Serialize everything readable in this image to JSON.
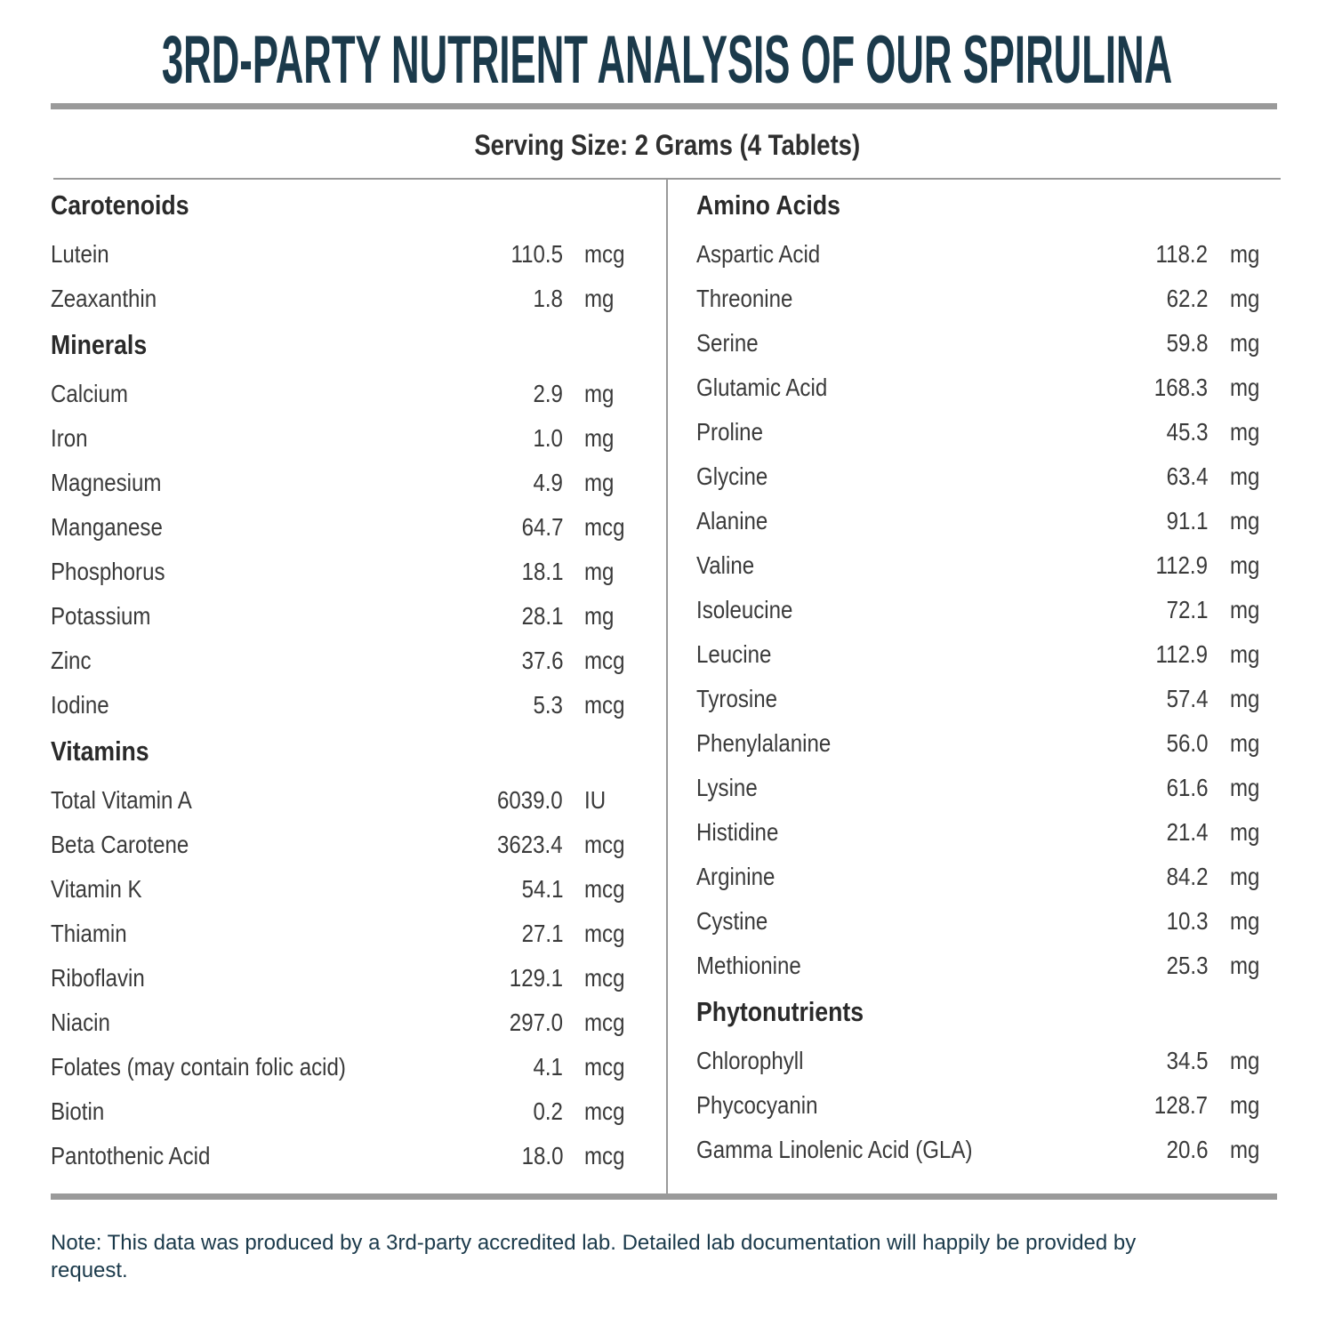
{
  "title": "3RD-PARTY NUTRIENT ANALYSIS OF OUR SPIRULINA",
  "serving_size": "Serving Size: 2 Grams (4 Tablets)",
  "columns": [
    {
      "sections": [
        {
          "heading": "Carotenoids",
          "items": [
            {
              "name": "Lutein",
              "value": "110.5",
              "unit": "mcg"
            },
            {
              "name": "Zeaxanthin",
              "value": "1.8",
              "unit": "mg"
            }
          ]
        },
        {
          "heading": "Minerals",
          "items": [
            {
              "name": "Calcium",
              "value": "2.9",
              "unit": "mg"
            },
            {
              "name": "Iron",
              "value": "1.0",
              "unit": "mg"
            },
            {
              "name": "Magnesium",
              "value": "4.9",
              "unit": "mg"
            },
            {
              "name": "Manganese",
              "value": "64.7",
              "unit": "mcg"
            },
            {
              "name": "Phosphorus",
              "value": "18.1",
              "unit": "mg"
            },
            {
              "name": "Potassium",
              "value": "28.1",
              "unit": "mg"
            },
            {
              "name": "Zinc",
              "value": "37.6",
              "unit": "mcg"
            },
            {
              "name": "Iodine",
              "value": "5.3",
              "unit": "mcg"
            }
          ]
        },
        {
          "heading": "Vitamins",
          "items": [
            {
              "name": "Total Vitamin A",
              "value": "6039.0",
              "unit": "IU"
            },
            {
              "name": "Beta Carotene",
              "value": "3623.4",
              "unit": "mcg"
            },
            {
              "name": "Vitamin K",
              "value": "54.1",
              "unit": "mcg"
            },
            {
              "name": "Thiamin",
              "value": "27.1",
              "unit": "mcg"
            },
            {
              "name": "Riboflavin",
              "value": "129.1",
              "unit": "mcg"
            },
            {
              "name": "Niacin",
              "value": "297.0",
              "unit": "mcg"
            },
            {
              "name": "Folates (may contain folic acid)",
              "value": "4.1",
              "unit": "mcg"
            },
            {
              "name": "Biotin",
              "value": "0.2",
              "unit": "mcg"
            },
            {
              "name": "Pantothenic Acid",
              "value": "18.0",
              "unit": "mcg"
            }
          ]
        }
      ]
    },
    {
      "sections": [
        {
          "heading": "Amino Acids",
          "items": [
            {
              "name": "Aspartic Acid",
              "value": "118.2",
              "unit": "mg"
            },
            {
              "name": "Threonine",
              "value": "62.2",
              "unit": "mg"
            },
            {
              "name": "Serine",
              "value": "59.8",
              "unit": "mg"
            },
            {
              "name": "Glutamic Acid",
              "value": "168.3",
              "unit": "mg"
            },
            {
              "name": "Proline",
              "value": "45.3",
              "unit": "mg"
            },
            {
              "name": "Glycine",
              "value": "63.4",
              "unit": "mg"
            },
            {
              "name": "Alanine",
              "value": "91.1",
              "unit": "mg"
            },
            {
              "name": "Valine",
              "value": "112.9",
              "unit": "mg"
            },
            {
              "name": "Isoleucine",
              "value": "72.1",
              "unit": "mg"
            },
            {
              "name": "Leucine",
              "value": "112.9",
              "unit": "mg"
            },
            {
              "name": "Tyrosine",
              "value": "57.4",
              "unit": "mg"
            },
            {
              "name": "Phenylalanine",
              "value": "56.0",
              "unit": "mg"
            },
            {
              "name": "Lysine",
              "value": "61.6",
              "unit": "mg"
            },
            {
              "name": "Histidine",
              "value": "21.4",
              "unit": "mg"
            },
            {
              "name": "Arginine",
              "value": "84.2",
              "unit": "mg"
            },
            {
              "name": "Cystine",
              "value": "10.3",
              "unit": "mg"
            },
            {
              "name": "Methionine",
              "value": "25.3",
              "unit": "mg"
            }
          ]
        },
        {
          "heading": "Phytonutrients",
          "items": [
            {
              "name": "Chlorophyll",
              "value": "34.5",
              "unit": "mg"
            },
            {
              "name": "Phycocyanin",
              "value": "128.7",
              "unit": "mg"
            },
            {
              "name": "Gamma Linolenic Acid (GLA)",
              "value": "20.6",
              "unit": "mg"
            }
          ]
        }
      ]
    }
  ],
  "note": "Note: This data was produced by a 3rd-party accredited lab. Detailed lab documentation will happily be provided by request."
}
